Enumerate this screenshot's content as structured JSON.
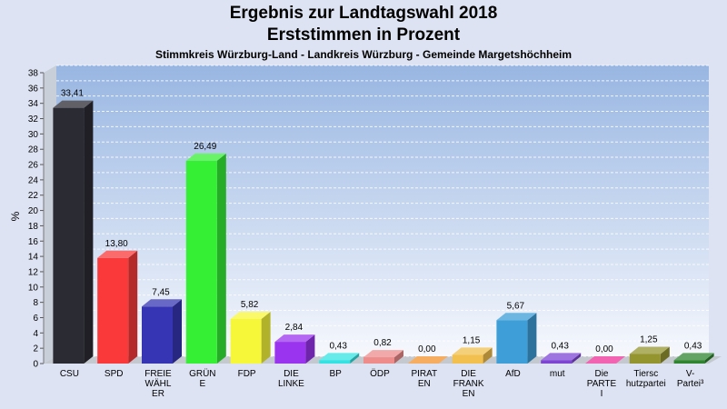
{
  "title": "Ergebnis zur Landtagswahl 2018",
  "subtitle": "Erststimmen in Prozent",
  "subtitle2": "Stimmkreis Würzburg-Land - Landkreis Würzburg - Gemeinde Margetshöchheim",
  "chart_data": {
    "type": "bar",
    "ylabel": "%",
    "ylim": [
      0,
      38
    ],
    "yticks": [
      0,
      2,
      4,
      6,
      8,
      10,
      12,
      14,
      16,
      18,
      20,
      22,
      24,
      26,
      28,
      30,
      32,
      34,
      36,
      38
    ],
    "grid": true,
    "categories": [
      [
        "CSU"
      ],
      [
        "SPD"
      ],
      [
        "FREIE",
        "WÄHL",
        "ER"
      ],
      [
        "GRÜN",
        "E"
      ],
      [
        "FDP"
      ],
      [
        "DIE",
        "LINKE"
      ],
      [
        "BP"
      ],
      [
        "ÖDP"
      ],
      [
        "PIRAT",
        "EN"
      ],
      [
        "DIE",
        "FRANK",
        "EN"
      ],
      [
        "AfD"
      ],
      [
        "mut"
      ],
      [
        "Die",
        "PARTE",
        "I"
      ],
      [
        "Tiersc",
        "hutzpartei"
      ],
      [
        "V-",
        "Partei³"
      ]
    ],
    "values": [
      33.41,
      13.8,
      7.45,
      26.49,
      5.82,
      2.84,
      0.43,
      0.82,
      0.0,
      1.15,
      5.67,
      0.43,
      0.0,
      1.25,
      0.43
    ],
    "value_labels": [
      "33,41",
      "13,80",
      "7,45",
      "26,49",
      "5,82",
      "2,84",
      "0,43",
      "0,82",
      "0,00",
      "1,15",
      "5,67",
      "0,43",
      "0,00",
      "1,25",
      "0,43"
    ],
    "colors": [
      "#2b2b33",
      "#fa3a3a",
      "#3636b4",
      "#35ef35",
      "#f7f73a",
      "#9a34ee",
      "#33e3e3",
      "#ee8c8c",
      "#f4922a",
      "#f2c04e",
      "#3d9ed8",
      "#7e45d5",
      "#ee2f97",
      "#959530",
      "#2f842f"
    ]
  }
}
